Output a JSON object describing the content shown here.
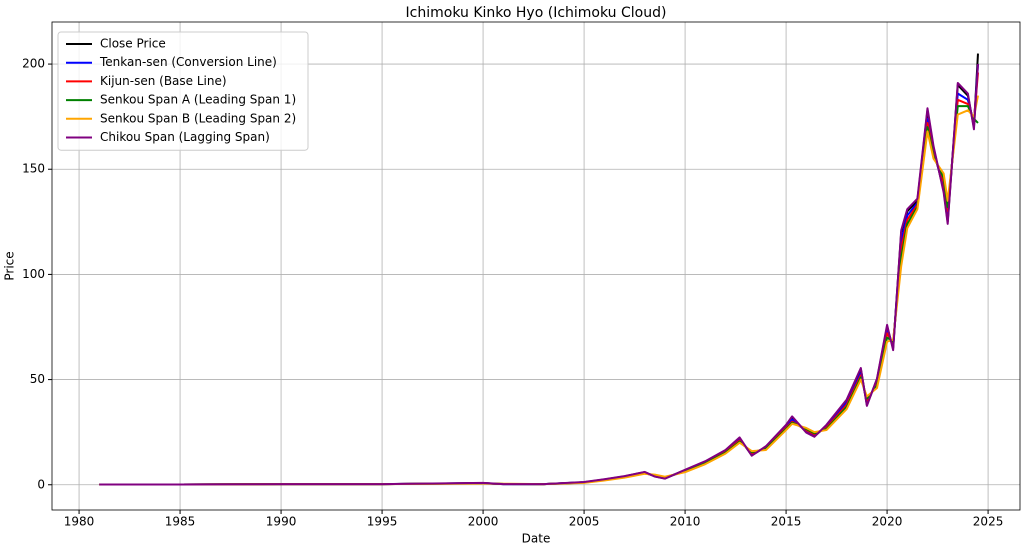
{
  "chart_data": {
    "type": "line",
    "title": "Ichimoku Kinko Hyo (Ichimoku Cloud)",
    "x_label": "Date",
    "y_label": "Price",
    "x": [
      1981,
      1985,
      1990,
      1995,
      2000,
      2001,
      2003,
      2005,
      2006,
      2007,
      2008,
      2008.5,
      2009,
      2010,
      2011,
      2012,
      2012.7,
      2013.3,
      2014,
      2015,
      2015.3,
      2016,
      2016.4,
      2017,
      2018,
      2018.7,
      2019,
      2019.5,
      2020,
      2020.3,
      2020.7,
      2021,
      2021.5,
      2022,
      2022.3,
      2022.8,
      2023,
      2023.5,
      2024,
      2024.3,
      2024.5
    ],
    "series": [
      {
        "name": "Close Price",
        "color": "#000000",
        "values": [
          0.1,
          0.1,
          0.3,
          0.3,
          0.8,
          0.3,
          0.3,
          1.2,
          2.5,
          4,
          6,
          4,
          3,
          7,
          11,
          16,
          22,
          14,
          18,
          28,
          32,
          25,
          23,
          28,
          40,
          55,
          38,
          50,
          75,
          65,
          120,
          130,
          135,
          178,
          160,
          140,
          125,
          190,
          185,
          170,
          205
        ]
      },
      {
        "name": "Tenkan-sen (Conversion Line)",
        "color": "#0000ff",
        "values": [
          0.1,
          0.1,
          0.3,
          0.3,
          0.8,
          0.3,
          0.3,
          1.2,
          2.4,
          3.9,
          5.8,
          4.1,
          3.1,
          6.8,
          10.8,
          15.8,
          21.5,
          14.5,
          17.8,
          27.5,
          31,
          25.5,
          23.5,
          27.5,
          39,
          53,
          39,
          49,
          73,
          66,
          116,
          128,
          134,
          174,
          158,
          142,
          128,
          186,
          183,
          172,
          200
        ]
      },
      {
        "name": "Kijun-sen (Base Line)",
        "color": "#ff0000",
        "values": [
          0.1,
          0.1,
          0.3,
          0.3,
          0.7,
          0.35,
          0.3,
          1.1,
          2.3,
          3.8,
          5.5,
          4.3,
          3.3,
          6.5,
          10.5,
          15.5,
          21,
          15,
          17.5,
          27,
          30,
          26,
          24,
          27,
          38,
          52,
          40,
          48,
          72,
          67,
          112,
          126,
          133,
          172,
          157,
          144,
          130,
          183,
          181,
          173,
          196
        ]
      },
      {
        "name": "Senkou Span A (Leading Span 1)",
        "color": "#008000",
        "values": [
          0.1,
          0.1,
          0.3,
          0.3,
          0.7,
          0.4,
          0.3,
          1.0,
          2.2,
          3.6,
          5.4,
          4.5,
          3.5,
          6.3,
          10.2,
          15.2,
          20.5,
          15.5,
          17,
          26.5,
          29.5,
          26.5,
          24.5,
          26.5,
          37,
          51,
          41,
          47,
          70,
          68,
          108,
          124,
          132,
          170,
          156,
          146,
          132,
          180,
          180,
          174,
          172
        ]
      },
      {
        "name": "Senkou Span B (Leading Span 2)",
        "color": "#ffa500",
        "values": [
          0.1,
          0.1,
          0.3,
          0.3,
          0.6,
          0.5,
          0.3,
          0.9,
          2.0,
          3.4,
          5.2,
          4.8,
          3.8,
          6.0,
          9.8,
          14.8,
          20,
          16,
          16.5,
          26,
          29,
          27,
          25,
          26,
          36,
          50,
          42,
          46,
          68,
          69,
          104,
          122,
          131,
          168,
          155,
          148,
          135,
          176,
          178,
          175,
          185
        ]
      },
      {
        "name": "Chikou Span (Lagging Span)",
        "color": "#800080",
        "values": [
          0.1,
          0.1,
          0.3,
          0.3,
          0.9,
          0.3,
          0.3,
          1.3,
          2.6,
          4.1,
          6.1,
          3.9,
          2.9,
          7.1,
          11.2,
          16.5,
          22.5,
          13.8,
          18.3,
          28.5,
          32.5,
          24.8,
          22.8,
          28.5,
          40.5,
          55.5,
          37.5,
          50.5,
          76,
          64,
          121,
          131,
          136,
          179,
          161,
          139,
          124,
          191,
          186,
          169,
          200
        ]
      }
    ],
    "xlim": [
      1978.66,
      2026.58
    ],
    "ylim": [
      -12,
      220
    ],
    "xticks": [
      1980,
      1985,
      1990,
      1995,
      2000,
      2005,
      2010,
      2015,
      2020,
      2025
    ],
    "yticks": [
      0,
      50,
      100,
      150,
      200
    ],
    "grid": true,
    "legend": "upper-left"
  }
}
